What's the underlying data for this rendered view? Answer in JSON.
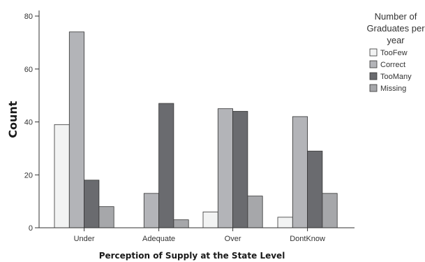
{
  "chart_data": {
    "type": "bar",
    "ylabel": "Count",
    "xlabel": "Perception of Supply at the State Level",
    "categories": [
      "Under",
      "Adequate",
      "Over",
      "DontKnow"
    ],
    "ylim": [
      0,
      80
    ],
    "yticks": [
      "0",
      "20",
      "40",
      "60",
      "80"
    ],
    "legend": {
      "title_lines": [
        "Number of",
        "Graduates per",
        "year"
      ],
      "placement": "right"
    },
    "series": [
      {
        "name": "TooFew",
        "color": "#f2f3f3",
        "values": [
          39,
          0,
          6,
          4
        ]
      },
      {
        "name": "Correct",
        "color": "#b3b4b8",
        "values": [
          74,
          13,
          45,
          42
        ]
      },
      {
        "name": "TooMany",
        "color": "#6a6b6f",
        "values": [
          18,
          47,
          44,
          29
        ]
      },
      {
        "name": "Missing",
        "color": "#a6a7aa",
        "values": [
          8,
          3,
          12,
          13
        ]
      }
    ]
  }
}
